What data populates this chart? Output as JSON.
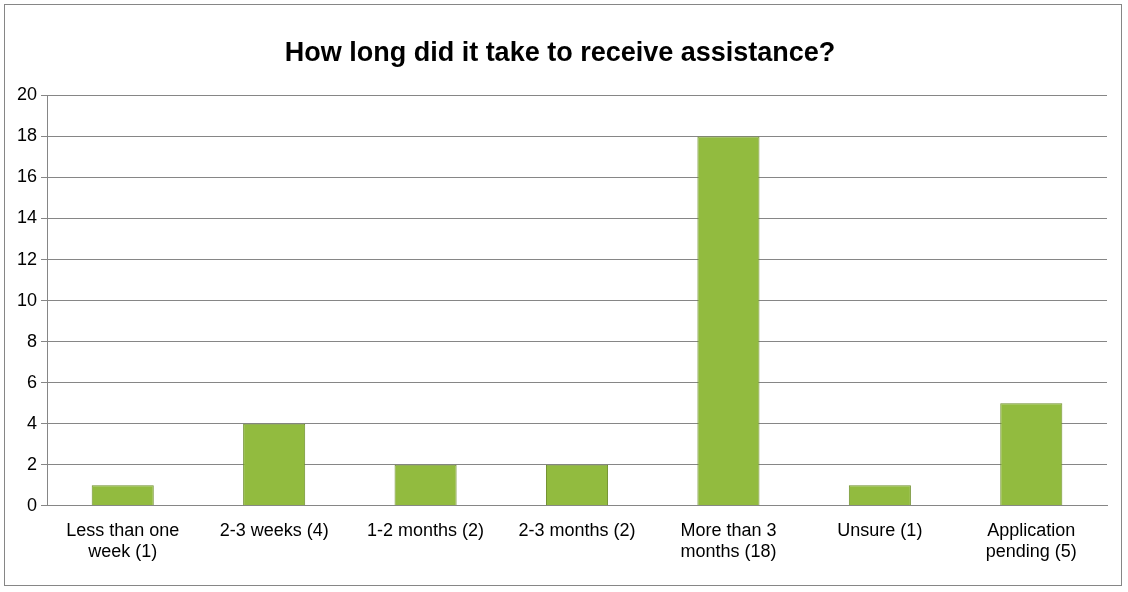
{
  "chart_data": {
    "type": "bar",
    "title": "How long did it take to receive assistance?",
    "categories": [
      "Less than one week (1)",
      "2-3 weeks (4)",
      "1-2 months (2)",
      "2-3 months (2)",
      "More than 3 months (18)",
      "Unsure (1)",
      "Application pending (5)"
    ],
    "values": [
      1,
      4,
      2,
      2,
      18,
      1,
      5
    ],
    "color": "#92bb3f",
    "ylim": [
      0,
      20
    ],
    "yticks": [
      0,
      2,
      4,
      6,
      8,
      10,
      12,
      14,
      16,
      18,
      20
    ],
    "grid": "y",
    "legend": false
  }
}
